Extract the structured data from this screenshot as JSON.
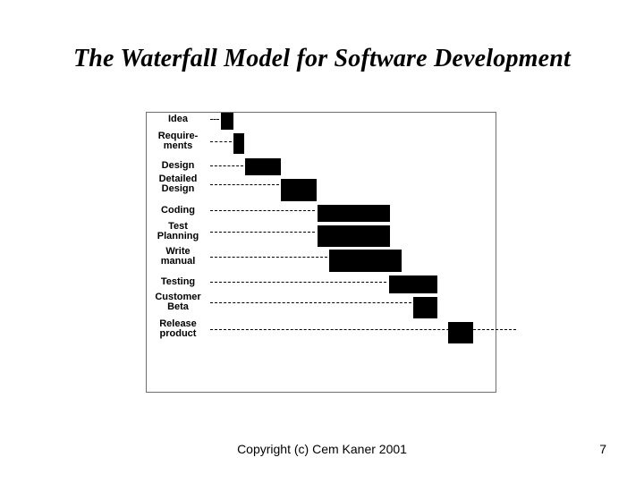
{
  "slide": {
    "title": "The Waterfall Model for Software Development",
    "copyright": "Copyright (c) Cem Kaner 2001",
    "page_number": "7"
  },
  "tasks": [
    {
      "label": "Idea"
    },
    {
      "label": "Require-\nments"
    },
    {
      "label": "Design"
    },
    {
      "label": "Detailed\nDesign"
    },
    {
      "label": "Coding"
    },
    {
      "label": "Test\nPlanning"
    },
    {
      "label": "Write\nmanual"
    },
    {
      "label": "Testing"
    },
    {
      "label": "Customer\nBeta"
    },
    {
      "label": "Release\nproduct"
    }
  ],
  "colors": {
    "bar": "#000000",
    "frame": "#6f6f6f"
  }
}
